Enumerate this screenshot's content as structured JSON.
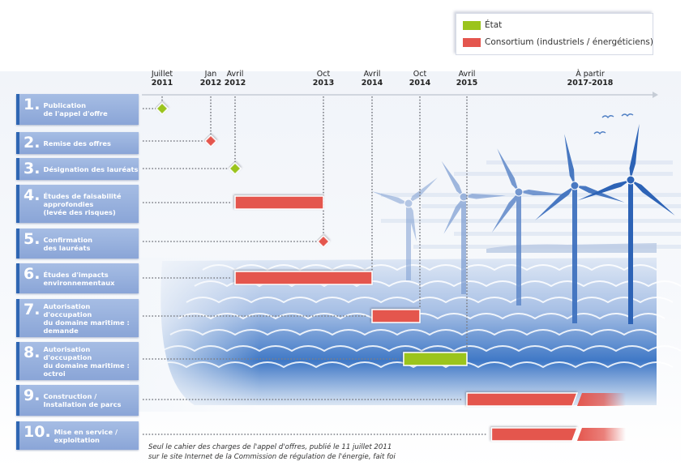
{
  "legend": {
    "items": [
      {
        "label": "État",
        "color": "#9bc41c"
      },
      {
        "label": "Consortium (industriels / énergéticiens)",
        "color": "#e4564e"
      }
    ]
  },
  "colors": {
    "etat": "#9bc41c",
    "consortium": "#e4564e",
    "step_box": "#95afdd",
    "step_accent": "#2f66b3",
    "sea": "#4f83c9",
    "turbine": "#3c6fbd"
  },
  "chart_data": {
    "type": "gantt",
    "title": "",
    "xlabel": "",
    "ylabel": "",
    "x_axis": {
      "ticks": [
        {
          "top": "Juillet",
          "bottom": "2011",
          "t": 2011.5
        },
        {
          "top": "Jan",
          "bottom": "2012",
          "t": 2012.0
        },
        {
          "top": "Avril",
          "bottom": "2012",
          "t": 2012.25
        },
        {
          "top": "Oct",
          "bottom": "2013",
          "t": 2013.75
        },
        {
          "top": "Avril",
          "bottom": "2014",
          "t": 2014.25
        },
        {
          "top": "Oct",
          "bottom": "2014",
          "t": 2014.75
        },
        {
          "top": "Avril",
          "bottom": "2015",
          "t": 2015.25
        },
        {
          "top": "À partir",
          "bottom": "2017-2018",
          "t": 2016.75,
          "label_only": true
        }
      ]
    },
    "tasks": [
      {
        "num": "1.",
        "label": "Publication\nde l'appel d'offre",
        "kind": "milestone",
        "actor": "etat",
        "start": 2011.5
      },
      {
        "num": "2.",
        "label": "Remise des offres",
        "kind": "milestone",
        "actor": "consortium",
        "start": 2012.0
      },
      {
        "num": "3.",
        "label": "Désignation des lauréats",
        "kind": "milestone",
        "actor": "etat",
        "start": 2012.25
      },
      {
        "num": "4.",
        "label": "Études de faisabilité\napprofondies\n(levée des risques)",
        "kind": "bar",
        "actor": "consortium",
        "start": 2012.25,
        "end": 2013.75
      },
      {
        "num": "5.",
        "label": "Confirmation\ndes lauréats",
        "kind": "milestone",
        "actor": "consortium",
        "start": 2013.75
      },
      {
        "num": "6.",
        "label": "Études d'impacts\nenvironnementaux",
        "kind": "bar",
        "actor": "consortium",
        "start": 2012.25,
        "end": 2014.25
      },
      {
        "num": "7.",
        "label": "Autorisation d'occupation\ndu domaine maritime :\ndemande",
        "kind": "bar",
        "actor": "consortium",
        "start": 2014.25,
        "end": 2014.75
      },
      {
        "num": "8.",
        "label": "Autorisation d'occupation\ndu domaine maritime :\noctroi",
        "kind": "bar",
        "actor": "etat",
        "start": 2014.58,
        "end": 2015.25
      },
      {
        "num": "9.",
        "label": "Construction /\nInstallation de parcs",
        "kind": "bar_open",
        "actor": "consortium",
        "start": 2015.25,
        "end": "2017-2018+"
      },
      {
        "num": "10.",
        "label": "Mise en service /\nexploitation",
        "kind": "bar_open",
        "actor": "consortium",
        "start": 2015.55,
        "end": "2017-2018+"
      }
    ]
  },
  "footnote": "Seul le cahier des charges de l'appel d'offres, publié le 11 juillet 2011\nsur le site Internet de la Commission de régulation de l'énergie, fait foi"
}
